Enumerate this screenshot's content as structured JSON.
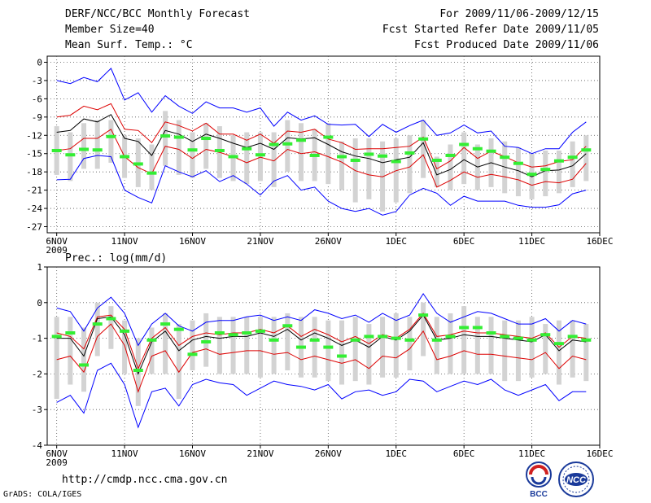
{
  "header": {
    "title": "DERF/NCC/BCC Monthly Forecast",
    "member_size": "Member Size=40",
    "period": "For 2009/11/06-2009/12/15",
    "started": "Fcst Started Refer Date 2009/11/05",
    "produced": "Fcst Produced Date 2009/11/06"
  },
  "footer": {
    "url": "http://cmdp.ncc.cma.gov.cn",
    "credit": "GrADS: COLA/IGES",
    "logo1_text": "BCC",
    "logo2_text": "NCC"
  },
  "colors": {
    "envelope": "#0000ff",
    "spread": "#dd0000",
    "mean": "#000000",
    "box": "#d3d3d3",
    "marker": "#33ee33",
    "grid": "#555555"
  },
  "chart_data": [
    {
      "type": "line",
      "title": "Mean Surf. Temp.: °C",
      "ylabel": "°C",
      "ylim": [
        -28,
        1
      ],
      "yticks": [
        0,
        -3,
        -6,
        -9,
        -12,
        -15,
        -18,
        -21,
        -24,
        -27
      ],
      "xticks": [
        {
          "day": 1,
          "label": "6NOV",
          "sub": "2009"
        },
        {
          "day": 6,
          "label": "11NOV"
        },
        {
          "day": 11,
          "label": "16NOV"
        },
        {
          "day": 16,
          "label": "21NOV"
        },
        {
          "day": 21,
          "label": "26NOV"
        },
        {
          "day": 26,
          "label": "1DEC"
        },
        {
          "day": 31,
          "label": "6DEC"
        },
        {
          "day": 36,
          "label": "11DEC"
        },
        {
          "day": 41,
          "label": "16DEC"
        }
      ],
      "xlim": [
        0.3,
        41
      ],
      "x_days": [
        1,
        2,
        3,
        4,
        5,
        6,
        7,
        8,
        9,
        10,
        11,
        12,
        13,
        14,
        15,
        16,
        17,
        18,
        19,
        20,
        21,
        22,
        23,
        24,
        25,
        26,
        27,
        28,
        29,
        30,
        31,
        32,
        33,
        34,
        35,
        36,
        37,
        38,
        39,
        40
      ],
      "series": [
        {
          "name": "max",
          "style": "envelope",
          "values": [
            -3,
            -3.5,
            -2.5,
            -3.2,
            -1,
            -6.2,
            -5,
            -8.2,
            -5.5,
            -7.2,
            -8.4,
            -6.5,
            -7.5,
            -7.5,
            -8.2,
            -7.5,
            -10.5,
            -8.2,
            -9.5,
            -8.8,
            -10.2,
            -10.3,
            -10.2,
            -12.2,
            -10.2,
            -11.5,
            -10.4,
            -9.5,
            -12,
            -11.6,
            -10.3,
            -11.6,
            -11.3,
            -13.8,
            -14,
            -15,
            -14.2,
            -14.2,
            -11.5,
            -9.8
          ]
        },
        {
          "name": "upper",
          "style": "spread",
          "values": [
            -9,
            -8.7,
            -7.2,
            -7.8,
            -6.8,
            -11,
            -11.2,
            -13.2,
            -9.8,
            -10.4,
            -11.3,
            -10,
            -11.8,
            -11.8,
            -12.8,
            -11.8,
            -13.3,
            -11.3,
            -11.5,
            -11,
            -12.6,
            -13.2,
            -14.3,
            -14.2,
            -14.2,
            -14,
            -13.8,
            -12.3,
            -17.5,
            -16.2,
            -14,
            -15.8,
            -14.6,
            -15.5,
            -16.5,
            -17.2,
            -17,
            -16.3,
            -16,
            -13.8
          ]
        },
        {
          "name": "mean",
          "style": "mean",
          "values": [
            -11.5,
            -11.2,
            -9.3,
            -9.8,
            -8.6,
            -12.5,
            -13,
            -15.3,
            -11.2,
            -11.8,
            -13,
            -11.8,
            -12.5,
            -13.3,
            -14,
            -13.3,
            -14.3,
            -12.4,
            -12.6,
            -12.4,
            -13.5,
            -14.7,
            -15.4,
            -15.8,
            -16.5,
            -16,
            -15.6,
            -13.2,
            -18.5,
            -17.6,
            -16,
            -17.2,
            -16.5,
            -17.2,
            -17.8,
            -18.8,
            -17.8,
            -17.7,
            -17,
            -15
          ]
        },
        {
          "name": "lower",
          "style": "spread",
          "values": [
            -14.5,
            -14.2,
            -12.5,
            -12.5,
            -11,
            -15.5,
            -17.3,
            -18.3,
            -13.8,
            -14.3,
            -15.8,
            -14.3,
            -14.8,
            -15.5,
            -16.5,
            -15.6,
            -16.2,
            -14.3,
            -15,
            -14.7,
            -15.5,
            -16.4,
            -17.8,
            -18.5,
            -18.8,
            -17.8,
            -17.2,
            -15.2,
            -20.5,
            -19.4,
            -18,
            -18.9,
            -18.4,
            -18.8,
            -19.3,
            -20.2,
            -19.6,
            -19.8,
            -19.2,
            -16.6
          ]
        },
        {
          "name": "min",
          "style": "envelope",
          "values": [
            -19.3,
            -19.2,
            -15.8,
            -15.3,
            -15.5,
            -21,
            -22.2,
            -23.1,
            -17,
            -18,
            -18.8,
            -17.8,
            -19.6,
            -18.6,
            -20,
            -21.8,
            -19.5,
            -18.6,
            -21,
            -20.5,
            -22.8,
            -24,
            -24.5,
            -24,
            -25.1,
            -24.5,
            -21.8,
            -20.7,
            -21.5,
            -23.5,
            -22,
            -22.8,
            -22.8,
            -22.8,
            -23.5,
            -23.8,
            -23.8,
            -23.4,
            -21.6,
            -21
          ]
        },
        {
          "name": "marker",
          "style": "marker",
          "values": [
            -14.5,
            -15.2,
            -14.3,
            -14.4,
            -12.2,
            -15.5,
            -16.7,
            -18.2,
            -12.1,
            -12.3,
            -14.4,
            -12.5,
            -14.5,
            -15.5,
            -14.2,
            -15.2,
            -13.5,
            -13.4,
            -12.8,
            -15.3,
            -12.3,
            -15.5,
            -16.1,
            -15.1,
            -15.4,
            -16.3,
            -14.9,
            -12.6,
            -16.1,
            -15.3,
            -13.5,
            -14.2,
            -14.6,
            -15.6,
            -16.6,
            -18.4,
            -17.6,
            -16.2,
            -15.6,
            -14.4
          ]
        },
        {
          "name": "box_top",
          "style": "box",
          "values": [
            -10.5,
            -11.5,
            -10,
            -9.5,
            -9.5,
            -12,
            -12.5,
            -13.5,
            -8,
            -9.5,
            -11.5,
            -10,
            -10.5,
            -12,
            -11.5,
            -11.5,
            -11.5,
            -9.5,
            -10,
            -11,
            -10,
            -13,
            -12.5,
            -12.5,
            -13,
            -12.5,
            -12,
            -9.5,
            -15.5,
            -13.5,
            -11.5,
            -13.5,
            -12.5,
            -13,
            -14,
            -15,
            -14.5,
            -14.5,
            -13,
            -12
          ]
        },
        {
          "name": "box_bottom",
          "style": "box",
          "values": [
            -18.5,
            -19.5,
            -17.5,
            -17.5,
            -16.5,
            -19,
            -20.5,
            -21,
            -17,
            -18.5,
            -19,
            -17.5,
            -19,
            -19.5,
            -20,
            -19.5,
            -20.5,
            -18,
            -19.5,
            -19.5,
            -20,
            -21,
            -23,
            -22.5,
            -24.5,
            -23,
            -21.5,
            -19,
            -20.5,
            -21,
            -20,
            -21,
            -20.5,
            -21.5,
            -22,
            -22.5,
            -22,
            -21.5,
            -20.5,
            -19.5
          ]
        }
      ]
    },
    {
      "type": "line",
      "title": "Prec.: log(mm/d)",
      "ylabel": "log(mm/d)",
      "ylim": [
        -4,
        1
      ],
      "yticks": [
        1,
        0,
        -1,
        -2,
        -3,
        -4
      ],
      "xticks": [
        {
          "day": 1,
          "label": "6NOV",
          "sub": "2009"
        },
        {
          "day": 6,
          "label": "11NOV"
        },
        {
          "day": 11,
          "label": "16NOV"
        },
        {
          "day": 16,
          "label": "21NOV"
        },
        {
          "day": 21,
          "label": "26NOV"
        },
        {
          "day": 26,
          "label": "1DEC"
        },
        {
          "day": 31,
          "label": "6DEC"
        },
        {
          "day": 36,
          "label": "11DEC"
        },
        {
          "day": 41,
          "label": "16DEC"
        }
      ],
      "xlim": [
        0.3,
        41
      ],
      "x_days": [
        1,
        2,
        3,
        4,
        5,
        6,
        7,
        8,
        9,
        10,
        11,
        12,
        13,
        14,
        15,
        16,
        17,
        18,
        19,
        20,
        21,
        22,
        23,
        24,
        25,
        26,
        27,
        28,
        29,
        30,
        31,
        32,
        33,
        34,
        35,
        36,
        37,
        38,
        39,
        40
      ],
      "series": [
        {
          "name": "max",
          "style": "envelope",
          "values": [
            -0.15,
            -0.25,
            -0.8,
            -0.15,
            0.15,
            -0.3,
            -1.2,
            -0.6,
            -0.3,
            -0.65,
            -0.8,
            -0.55,
            -0.5,
            -0.5,
            -0.4,
            -0.35,
            -0.5,
            -0.4,
            -0.5,
            -0.2,
            -0.3,
            -0.45,
            -0.35,
            -0.55,
            -0.3,
            -0.5,
            -0.35,
            0.25,
            -0.3,
            -0.55,
            -0.4,
            -0.25,
            -0.3,
            -0.45,
            -0.6,
            -0.6,
            -0.45,
            -0.8,
            -0.5,
            -0.6
          ]
        },
        {
          "name": "upper",
          "style": "spread",
          "values": [
            -0.85,
            -0.95,
            -1.3,
            -0.4,
            -0.35,
            -0.75,
            -1.85,
            -1,
            -0.7,
            -1.2,
            -0.95,
            -0.85,
            -0.9,
            -0.85,
            -0.85,
            -0.75,
            -0.85,
            -0.65,
            -0.95,
            -0.75,
            -0.9,
            -1.1,
            -0.95,
            -1.15,
            -0.9,
            -1,
            -0.75,
            -0.3,
            -0.95,
            -0.9,
            -0.8,
            -0.85,
            -0.85,
            -0.9,
            -0.95,
            -1,
            -0.85,
            -1.25,
            -0.95,
            -1
          ]
        },
        {
          "name": "mean",
          "style": "mean",
          "values": [
            -1,
            -1,
            -1.5,
            -0.45,
            -0.4,
            -0.9,
            -2,
            -1.1,
            -0.8,
            -1.35,
            -1.05,
            -0.95,
            -1,
            -0.95,
            -0.95,
            -0.85,
            -0.95,
            -0.75,
            -1.05,
            -0.85,
            -1,
            -1.2,
            -1.05,
            -1.25,
            -0.95,
            -1.05,
            -0.8,
            -0.35,
            -1.05,
            -1,
            -0.9,
            -0.95,
            -0.95,
            -1,
            -1.05,
            -1.1,
            -0.9,
            -1.35,
            -1.05,
            -1.1
          ]
        },
        {
          "name": "lower",
          "style": "spread",
          "values": [
            -1.6,
            -1.5,
            -1.95,
            -0.95,
            -0.6,
            -1.2,
            -2.5,
            -1.5,
            -1.35,
            -1.95,
            -1.4,
            -1.3,
            -1.45,
            -1.4,
            -1.35,
            -1.35,
            -1.45,
            -1.4,
            -1.6,
            -1.5,
            -1.6,
            -1.7,
            -1.6,
            -1.85,
            -1.5,
            -1.55,
            -1.3,
            -0.8,
            -1.6,
            -1.5,
            -1.35,
            -1.45,
            -1.45,
            -1.5,
            -1.55,
            -1.6,
            -1.4,
            -1.85,
            -1.5,
            -1.6
          ]
        },
        {
          "name": "min",
          "style": "envelope",
          "values": [
            -2.8,
            -2.6,
            -3.1,
            -1.9,
            -1.7,
            -2.3,
            -3.5,
            -2.5,
            -2.4,
            -2.9,
            -2.3,
            -2.15,
            -2.25,
            -2.3,
            -2.6,
            -2.4,
            -2.2,
            -2.3,
            -2.35,
            -2.45,
            -2.3,
            -2.7,
            -2.5,
            -2.45,
            -2.6,
            -2.5,
            -2.15,
            -2.2,
            -2.5,
            -2.35,
            -2.2,
            -2.3,
            -2.15,
            -2.45,
            -2.6,
            -2.45,
            -2.3,
            -2.75,
            -2.5,
            -2.5
          ]
        },
        {
          "name": "marker",
          "style": "marker",
          "values": [
            -0.95,
            -0.85,
            -1.75,
            -0.6,
            -0.45,
            -0.8,
            -1.9,
            -1.05,
            -0.6,
            -0.75,
            -1.45,
            -1.1,
            -0.85,
            -0.9,
            -0.85,
            -0.8,
            -1.05,
            -0.65,
            -1.25,
            -1.05,
            -1.25,
            -1.5,
            -1.05,
            -0.95,
            -0.95,
            -1,
            -1.05,
            -0.35,
            -1.05,
            -0.95,
            -0.7,
            -0.7,
            -0.85,
            -0.95,
            -1,
            -1.05,
            -0.9,
            -1.15,
            -0.95,
            -1.05
          ]
        },
        {
          "name": "box_top",
          "style": "box",
          "values": [
            -0.4,
            -0.4,
            -0.7,
            0,
            -0.1,
            -0.5,
            -1,
            -0.7,
            -0.3,
            -0.6,
            -0.5,
            -0.3,
            -0.4,
            -0.4,
            -0.4,
            -0.4,
            -0.4,
            -0.3,
            -0.4,
            -0.4,
            -0.5,
            -0.5,
            -0.4,
            -0.6,
            -0.4,
            -0.3,
            -0.4,
            0,
            -0.4,
            -0.3,
            -0.1,
            -0.4,
            -0.4,
            -0.5,
            -0.5,
            -0.4,
            -0.6,
            -0.5,
            -0.5,
            -0.6
          ]
        },
        {
          "name": "box_bottom",
          "style": "box",
          "values": [
            -2.7,
            -2.3,
            -2.5,
            -1.5,
            -1.3,
            -2,
            -2.9,
            -2,
            -2,
            -2.7,
            -1.9,
            -1.8,
            -2,
            -2,
            -2,
            -2.1,
            -2,
            -1.9,
            -2.1,
            -2.1,
            -2.2,
            -2.3,
            -2.2,
            -2.3,
            -2.1,
            -2.1,
            -1.9,
            -1.5,
            -2,
            -2,
            -2,
            -2,
            -2,
            -2.2,
            -2.2,
            -2.1,
            -2,
            -2.3,
            -2.1,
            -2.2
          ]
        }
      ]
    }
  ]
}
